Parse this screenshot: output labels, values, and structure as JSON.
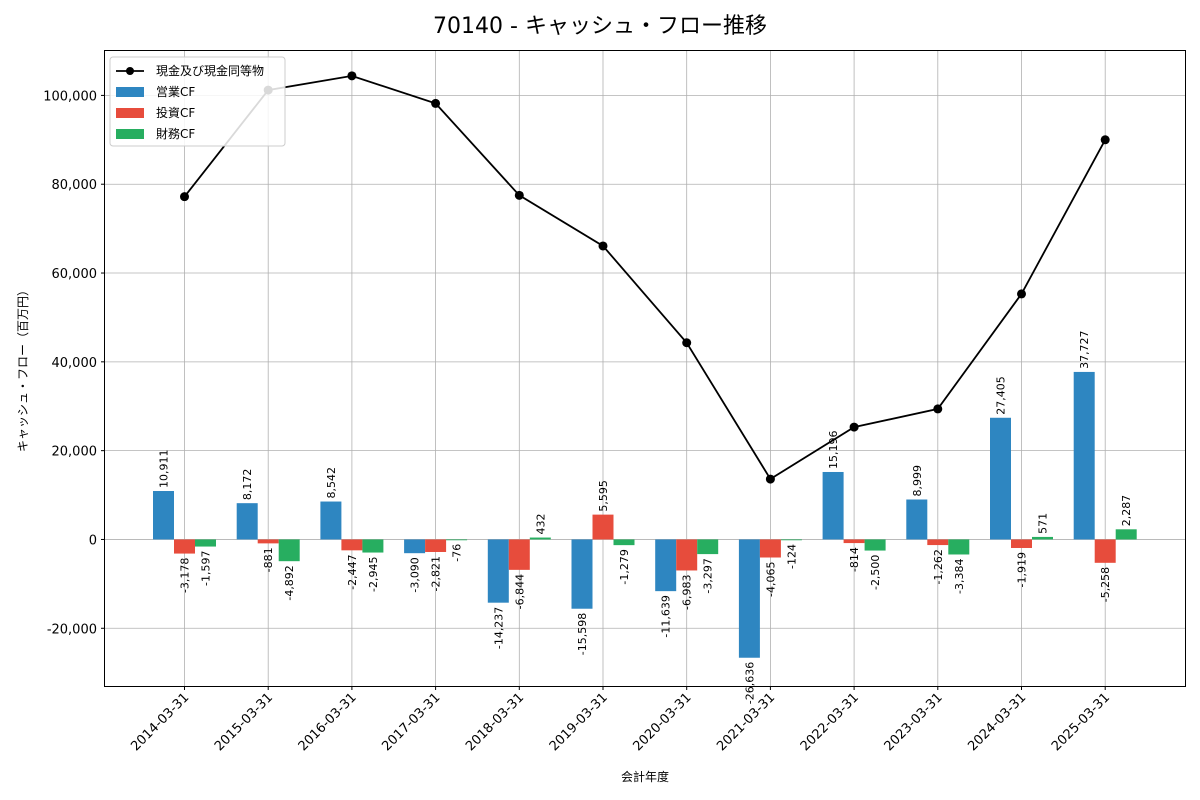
{
  "chart_data": {
    "type": "bar",
    "title": "70140 - キャッシュ・フロー推移",
    "xlabel": "会計年度",
    "ylabel": "キャッシュ・フロー（百万円）",
    "categories": [
      "2014-03-31",
      "2015-03-31",
      "2016-03-31",
      "2017-03-31",
      "2018-03-31",
      "2019-03-31",
      "2020-03-31",
      "2021-03-31",
      "2022-03-31",
      "2023-03-31",
      "2024-03-31",
      "2025-03-31"
    ],
    "ylim": [
      -33000,
      110000
    ],
    "yticks": [
      -20000,
      0,
      20000,
      40000,
      60000,
      80000,
      100000
    ],
    "ytick_labels": [
      "-20,000",
      "0",
      "20,000",
      "40,000",
      "60,000",
      "80,000",
      "100,000"
    ],
    "grid": true,
    "legend_position": "top-left",
    "series": [
      {
        "name": "営業CF",
        "kind": "bar",
        "color": "#2e86c1",
        "values": [
          10911,
          8172,
          8542,
          -3090,
          -14237,
          -15598,
          -11639,
          -26636,
          15196,
          8999,
          27405,
          37727
        ],
        "labels": [
          "10,911",
          "8,172",
          "8,542",
          "-3,090",
          "-14,237",
          "-15,598",
          "-11,639",
          "-26,636",
          "15,196",
          "8,999",
          "27,405",
          "37,727"
        ]
      },
      {
        "name": "投資CF",
        "kind": "bar",
        "color": "#e74c3c",
        "values": [
          -3178,
          -881,
          -2447,
          -2821,
          -6844,
          5595,
          -6983,
          -4065,
          -814,
          -1262,
          -1919,
          -5258
        ],
        "labels": [
          "-3,178",
          "-881",
          "-2,447",
          "-2,821",
          "-6,844",
          "5,595",
          "-6,983",
          "-4,065",
          "-814",
          "-1,262",
          "-1,919",
          "-5,258"
        ]
      },
      {
        "name": "財務CF",
        "kind": "bar",
        "color": "#27ae60",
        "values": [
          -1597,
          -4892,
          -2945,
          -76,
          432,
          -1279,
          -3297,
          -124,
          -2500,
          -3384,
          571,
          2287
        ],
        "labels": [
          "-1,597",
          "-4,892",
          "-2,945",
          "-76",
          "432",
          "-1,279",
          "-3,297",
          "-124",
          "-2,500",
          "-3,384",
          "571",
          "2,287"
        ]
      },
      {
        "name": "現金及び現金同等物",
        "kind": "line",
        "color": "#000000",
        "values": [
          77200,
          101200,
          104400,
          98200,
          77500,
          66100,
          44300,
          13600,
          25300,
          29400,
          55300,
          90000
        ]
      }
    ]
  }
}
